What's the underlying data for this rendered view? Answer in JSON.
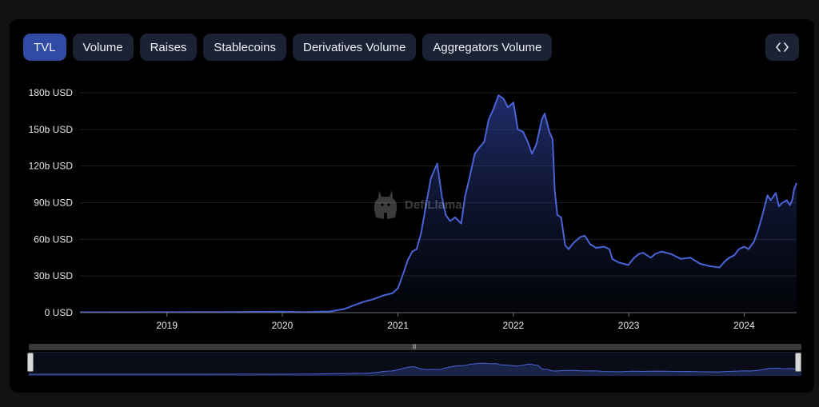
{
  "tabs": [
    {
      "label": "TVL",
      "active": true
    },
    {
      "label": "Volume",
      "active": false
    },
    {
      "label": "Raises",
      "active": false
    },
    {
      "label": "Stablecoins",
      "active": false
    },
    {
      "label": "Derivatives Volume",
      "active": false
    },
    {
      "label": "Aggregators Volume",
      "active": false
    }
  ],
  "embed_icon": "code-brackets-icon",
  "watermark": {
    "text": "DefiLlama",
    "icon": "llama-icon"
  },
  "colors": {
    "line": "#4a63d6",
    "accent": "#2f4ba3",
    "background": "#000000"
  },
  "chart_data": {
    "type": "area",
    "title": "",
    "xlabel": "",
    "ylabel": "",
    "grid": true,
    "ylim": [
      0,
      180
    ],
    "y_unit": "b USD",
    "yticks": [
      {
        "value": 0,
        "label": "0 USD"
      },
      {
        "value": 30,
        "label": "30b USD"
      },
      {
        "value": 60,
        "label": "60b USD"
      },
      {
        "value": 90,
        "label": "90b USD"
      },
      {
        "value": 120,
        "label": "120b USD"
      },
      {
        "value": 150,
        "label": "150b USD"
      },
      {
        "value": 180,
        "label": "180b USD"
      }
    ],
    "xlim": [
      "2018-04-01",
      "2024-06-15"
    ],
    "xticks": [
      {
        "value": "2019-01-01",
        "label": "2019"
      },
      {
        "value": "2020-01-01",
        "label": "2020"
      },
      {
        "value": "2021-01-01",
        "label": "2021"
      },
      {
        "value": "2022-01-01",
        "label": "2022"
      },
      {
        "value": "2023-01-01",
        "label": "2023"
      },
      {
        "value": "2024-01-01",
        "label": "2024"
      }
    ],
    "series": [
      {
        "points": [
          [
            "2018-04-01",
            0.3
          ],
          [
            "2019-01-01",
            0.4
          ],
          [
            "2019-06-01",
            0.5
          ],
          [
            "2020-01-01",
            0.7
          ],
          [
            "2020-03-15",
            0.5
          ],
          [
            "2020-06-01",
            1.0
          ],
          [
            "2020-07-15",
            3
          ],
          [
            "2020-08-15",
            6
          ],
          [
            "2020-09-15",
            9
          ],
          [
            "2020-10-15",
            11
          ],
          [
            "2020-11-15",
            14
          ],
          [
            "2020-12-15",
            16
          ],
          [
            "2021-01-01",
            20
          ],
          [
            "2021-01-15",
            30
          ],
          [
            "2021-02-01",
            43
          ],
          [
            "2021-02-15",
            50
          ],
          [
            "2021-03-01",
            52
          ],
          [
            "2021-03-15",
            65
          ],
          [
            "2021-04-01",
            90
          ],
          [
            "2021-04-15",
            110
          ],
          [
            "2021-05-05",
            122
          ],
          [
            "2021-05-20",
            95
          ],
          [
            "2021-06-01",
            80
          ],
          [
            "2021-06-15",
            75
          ],
          [
            "2021-07-01",
            78
          ],
          [
            "2021-07-20",
            73
          ],
          [
            "2021-08-01",
            95
          ],
          [
            "2021-08-15",
            110
          ],
          [
            "2021-09-01",
            130
          ],
          [
            "2021-09-15",
            135
          ],
          [
            "2021-10-01",
            140
          ],
          [
            "2021-10-15",
            158
          ],
          [
            "2021-11-01",
            168
          ],
          [
            "2021-11-15",
            178
          ],
          [
            "2021-12-01",
            175
          ],
          [
            "2021-12-15",
            168
          ],
          [
            "2022-01-01",
            172
          ],
          [
            "2022-01-15",
            150
          ],
          [
            "2022-02-01",
            148
          ],
          [
            "2022-02-15",
            140
          ],
          [
            "2022-03-01",
            130
          ],
          [
            "2022-03-15",
            138
          ],
          [
            "2022-04-01",
            158
          ],
          [
            "2022-04-10",
            163
          ],
          [
            "2022-04-25",
            148
          ],
          [
            "2022-05-05",
            142
          ],
          [
            "2022-05-12",
            100
          ],
          [
            "2022-05-20",
            80
          ],
          [
            "2022-06-01",
            78
          ],
          [
            "2022-06-14",
            55
          ],
          [
            "2022-06-25",
            52
          ],
          [
            "2022-07-10",
            57
          ],
          [
            "2022-08-01",
            62
          ],
          [
            "2022-08-15",
            63
          ],
          [
            "2022-09-01",
            56
          ],
          [
            "2022-09-20",
            53
          ],
          [
            "2022-10-15",
            54
          ],
          [
            "2022-11-01",
            52
          ],
          [
            "2022-11-10",
            44
          ],
          [
            "2022-12-01",
            41
          ],
          [
            "2022-12-31",
            39
          ],
          [
            "2023-01-15",
            44
          ],
          [
            "2023-02-01",
            48
          ],
          [
            "2023-02-15",
            49
          ],
          [
            "2023-03-12",
            45
          ],
          [
            "2023-03-25",
            48
          ],
          [
            "2023-04-15",
            50
          ],
          [
            "2023-05-15",
            48
          ],
          [
            "2023-06-15",
            44
          ],
          [
            "2023-07-15",
            45
          ],
          [
            "2023-08-15",
            40
          ],
          [
            "2023-09-15",
            38
          ],
          [
            "2023-10-15",
            37
          ],
          [
            "2023-11-01",
            42
          ],
          [
            "2023-11-15",
            45
          ],
          [
            "2023-12-01",
            47
          ],
          [
            "2023-12-15",
            52
          ],
          [
            "2024-01-01",
            54
          ],
          [
            "2024-01-15",
            52
          ],
          [
            "2024-02-01",
            58
          ],
          [
            "2024-02-15",
            68
          ],
          [
            "2024-03-01",
            82
          ],
          [
            "2024-03-15",
            96
          ],
          [
            "2024-03-25",
            92
          ],
          [
            "2024-04-10",
            98
          ],
          [
            "2024-04-20",
            87
          ],
          [
            "2024-05-01",
            90
          ],
          [
            "2024-05-15",
            92
          ],
          [
            "2024-05-25",
            88
          ],
          [
            "2024-06-01",
            92
          ],
          [
            "2024-06-08",
            102
          ],
          [
            "2024-06-15",
            106
          ]
        ]
      }
    ]
  }
}
